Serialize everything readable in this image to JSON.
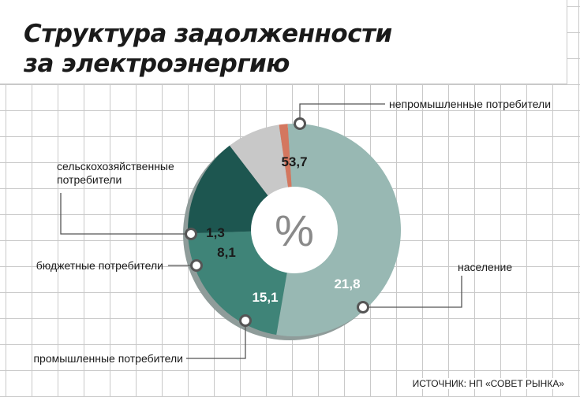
{
  "title_lines": [
    "Структура задолженности",
    "за электроэнергию"
  ],
  "source": "ИСТОЧНИК: НП «СОВЕТ РЫНКА»",
  "chart_data": {
    "type": "pie",
    "title": "Структура задолженности за электроэнергию",
    "center_label": "%",
    "slices": [
      {
        "label": "непромышленные потребители",
        "value": 53.7,
        "value_label": "53,7",
        "color": "#98b8b3",
        "value_color": "#1a1a1a"
      },
      {
        "label": "население",
        "value": 21.8,
        "value_label": "21,8",
        "color": "#3f8478",
        "value_color": "#ffffff"
      },
      {
        "label": "промышленные потребители",
        "value": 15.1,
        "value_label": "15,1",
        "color": "#1d5650",
        "value_color": "#ffffff"
      },
      {
        "label": "бюджетные потребители",
        "value": 8.1,
        "value_label": "8,1",
        "color": "#c8c8c8",
        "value_color": "#1a1a1a"
      },
      {
        "label": "сельскохозяйственные потребители",
        "value": 1.3,
        "value_label": "1,3",
        "color": "#d4775f",
        "value_color": "#1a1a1a"
      }
    ]
  }
}
